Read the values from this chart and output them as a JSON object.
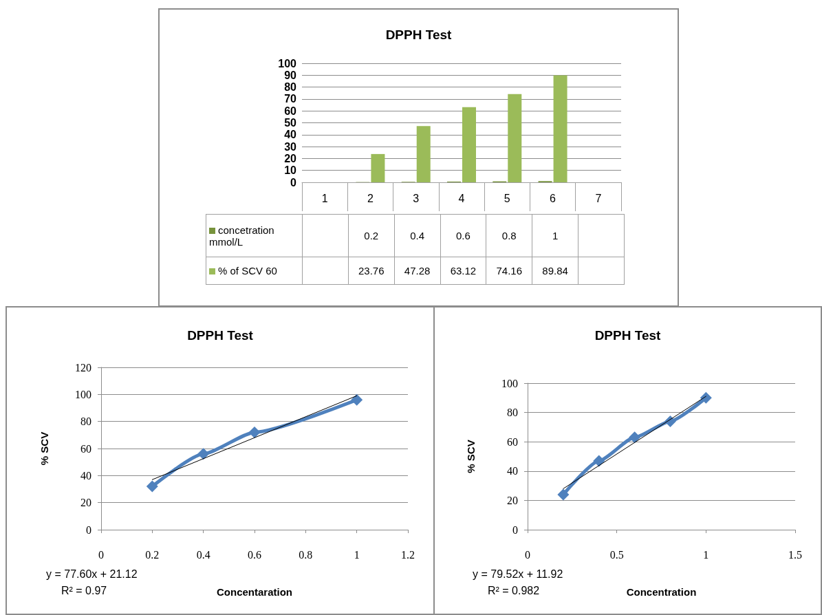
{
  "chart_data": [
    {
      "type": "bar",
      "title": "DPPH Test",
      "categories": [
        "1",
        "2",
        "3",
        "4",
        "5",
        "6",
        "7"
      ],
      "series": [
        {
          "name": "concetration mmol/L",
          "color": "#77933c",
          "values": [
            null,
            0.2,
            0.4,
            0.6,
            0.8,
            1,
            null
          ]
        },
        {
          "name": "% of SCV 60",
          "color": "#9bbb59",
          "values": [
            null,
            23.76,
            47.28,
            63.12,
            74.16,
            89.84,
            null
          ]
        }
      ],
      "ylim": [
        0,
        100
      ],
      "yticks": [
        0,
        10,
        20,
        30,
        40,
        50,
        60,
        70,
        80,
        90,
        100
      ],
      "grid": "y",
      "legend": "bottom",
      "data_labels": true
    },
    {
      "type": "line",
      "title": "DPPH Test",
      "xlabel": "Concentaration",
      "ylabel": "% SCV",
      "series": [
        {
          "color": "#4f81bd",
          "x": [
            0.2,
            0.4,
            0.6,
            1
          ],
          "values": [
            32,
            56,
            72,
            96
          ]
        },
        {
          "type": "line",
          "color": "#000000",
          "x": [
            0.2,
            1
          ],
          "values": [
            37,
            99
          ],
          "marker": "none"
        }
      ],
      "xlim": [
        0,
        1.2
      ],
      "xticks": [
        0,
        0.2,
        0.4,
        0.6,
        0.8,
        1,
        1.2
      ],
      "ylim": [
        0,
        120
      ],
      "yticks": [
        0,
        20,
        40,
        60,
        80,
        100,
        120
      ],
      "grid": "y",
      "marker": "diamond",
      "line_style": "solid",
      "annotations": [
        "y = 77.60x + 21.12",
        "R² = 0.97"
      ]
    },
    {
      "type": "line",
      "title": "DPPH Test",
      "xlabel": "Concentration",
      "ylabel": "% SCV",
      "series": [
        {
          "color": "#4f81bd",
          "x": [
            0.2,
            0.4,
            0.6,
            0.8,
            1
          ],
          "values": [
            24,
            47,
            63,
            74,
            90
          ]
        },
        {
          "type": "line",
          "color": "#000000",
          "x": [
            0.2,
            1
          ],
          "values": [
            28,
            91
          ],
          "marker": "none"
        }
      ],
      "xlim": [
        0,
        1.5
      ],
      "xticks": [
        0,
        0.5,
        1,
        1.5
      ],
      "ylim": [
        0,
        100
      ],
      "yticks": [
        0,
        20,
        40,
        60,
        80,
        100
      ],
      "grid": "y",
      "marker": "diamond",
      "line_style": "solid",
      "annotations": [
        "y = 79.52x + 11.92",
        "R² = 0.982"
      ]
    }
  ]
}
